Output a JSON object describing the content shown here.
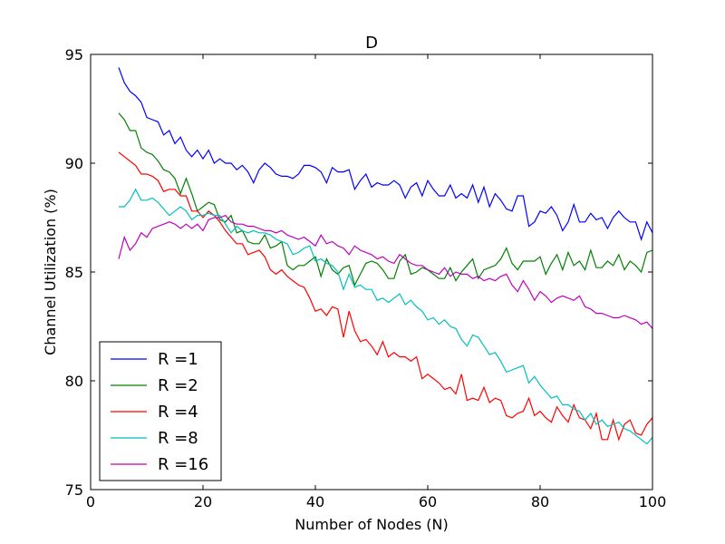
{
  "chart_data": {
    "type": "line",
    "title": "D",
    "xlabel": "Number of Nodes (N)",
    "ylabel": "Channel Utilization (%)",
    "xlim": [
      0,
      100
    ],
    "ylim": [
      75,
      95
    ],
    "xticks": [
      0,
      20,
      40,
      60,
      80,
      100
    ],
    "yticks": [
      75,
      80,
      85,
      90,
      95
    ],
    "grid": false,
    "legend_position": "lower-left",
    "x": [
      5,
      6,
      7,
      8,
      9,
      10,
      11,
      12,
      13,
      14,
      15,
      16,
      17,
      18,
      19,
      20,
      21,
      22,
      23,
      24,
      25,
      26,
      27,
      28,
      29,
      30,
      31,
      32,
      33,
      34,
      35,
      36,
      37,
      38,
      39,
      40,
      41,
      42,
      43,
      44,
      45,
      46,
      47,
      48,
      49,
      50,
      51,
      52,
      53,
      54,
      55,
      56,
      57,
      58,
      59,
      60,
      61,
      62,
      63,
      64,
      65,
      66,
      67,
      68,
      69,
      70,
      71,
      72,
      73,
      74,
      75,
      76,
      77,
      78,
      79,
      80,
      81,
      82,
      83,
      84,
      85,
      86,
      87,
      88,
      89,
      90,
      91,
      92,
      93,
      94,
      95,
      96,
      97,
      98,
      99,
      100
    ],
    "series": [
      {
        "name": "R =1",
        "color": "#0000ff",
        "values": [
          94.4,
          93.7,
          93.3,
          93.1,
          92.8,
          92.1,
          92.0,
          91.9,
          91.3,
          91.5,
          90.9,
          91.2,
          90.6,
          90.3,
          90.6,
          90.2,
          90.6,
          90.0,
          90.2,
          90.0,
          90.0,
          89.7,
          89.9,
          89.6,
          89.1,
          89.7,
          90.0,
          89.8,
          89.5,
          89.4,
          89.4,
          89.3,
          89.5,
          89.9,
          89.9,
          89.8,
          89.6,
          89.1,
          89.8,
          89.6,
          89.6,
          89.7,
          88.8,
          89.2,
          89.5,
          88.9,
          89.1,
          89.0,
          89.0,
          89.2,
          89.0,
          88.4,
          88.9,
          89.1,
          88.5,
          89.2,
          88.8,
          88.5,
          88.5,
          89.0,
          88.4,
          88.6,
          88.4,
          89.0,
          88.2,
          88.9,
          88.0,
          88.6,
          88.3,
          87.9,
          87.8,
          88.5,
          88.5,
          87.1,
          87.3,
          87.8,
          87.7,
          88.0,
          87.6,
          86.9,
          87.3,
          88.1,
          87.3,
          87.3,
          87.7,
          87.4,
          87.5,
          87.0,
          87.5,
          87.8,
          87.5,
          87.3,
          87.3,
          86.5,
          87.3,
          86.8
        ]
      },
      {
        "name": "R =2",
        "color": "#008000",
        "values": [
          92.3,
          92.0,
          91.5,
          91.5,
          90.7,
          90.5,
          90.4,
          90.1,
          89.7,
          89.6,
          89.3,
          88.6,
          89.3,
          88.6,
          87.8,
          88.0,
          88.2,
          88.1,
          87.4,
          87.3,
          87.6,
          86.8,
          86.9,
          86.4,
          86.3,
          86.3,
          86.7,
          86.1,
          86.2,
          86.4,
          85.3,
          85.1,
          85.3,
          85.3,
          85.5,
          85.7,
          84.8,
          85.6,
          85.1,
          84.9,
          85.2,
          85.3,
          84.4,
          84.9,
          85.4,
          85.5,
          85.4,
          85.1,
          84.7,
          84.7,
          85.5,
          85.8,
          84.9,
          85.0,
          85.2,
          85.1,
          84.9,
          84.7,
          84.7,
          85.2,
          84.6,
          85.0,
          85.3,
          85.6,
          84.7,
          85.1,
          85.2,
          85.3,
          85.6,
          86.1,
          85.4,
          85.1,
          85.5,
          85.5,
          85.5,
          85.7,
          84.9,
          85.4,
          85.8,
          85.1,
          85.9,
          85.3,
          85.5,
          85.1,
          86.0,
          85.2,
          85.2,
          85.5,
          85.3,
          85.8,
          85.1,
          85.5,
          85.3,
          85.0,
          85.9,
          86.0
        ]
      },
      {
        "name": "R =4",
        "color": "#ff0000",
        "values": [
          90.5,
          90.3,
          90.1,
          89.9,
          89.5,
          89.5,
          89.4,
          89.2,
          88.7,
          88.8,
          88.8,
          88.5,
          88.5,
          87.8,
          87.8,
          87.5,
          87.8,
          87.6,
          87.3,
          86.9,
          86.6,
          86.3,
          86.3,
          85.8,
          85.9,
          86.0,
          85.7,
          85.1,
          84.9,
          85.1,
          84.8,
          84.6,
          84.4,
          84.3,
          83.8,
          83.2,
          83.3,
          83.0,
          83.4,
          83.3,
          82.0,
          83.2,
          82.3,
          81.8,
          81.9,
          81.6,
          81.2,
          81.8,
          81.1,
          81.3,
          81.1,
          81.1,
          80.9,
          81.1,
          80.1,
          80.3,
          80.1,
          79.9,
          79.6,
          79.7,
          79.4,
          80.3,
          79.1,
          79.2,
          79.1,
          79.7,
          79.0,
          79.2,
          79.1,
          78.4,
          78.3,
          78.5,
          78.6,
          79.2,
          78.4,
          78.6,
          78.3,
          78.1,
          78.8,
          78.4,
          78.1,
          78.9,
          78.3,
          78.2,
          77.8,
          78.5,
          77.3,
          77.3,
          78.2,
          77.3,
          78.0,
          78.2,
          77.6,
          77.5,
          78.0,
          78.3
        ]
      },
      {
        "name": "R =8",
        "color": "#00bfbf",
        "values": [
          88.0,
          88.0,
          88.3,
          88.8,
          88.3,
          88.3,
          88.4,
          88.2,
          87.9,
          87.6,
          87.8,
          88.0,
          87.8,
          87.4,
          87.6,
          87.6,
          87.7,
          87.6,
          87.6,
          87.2,
          86.8,
          87.1,
          86.9,
          86.8,
          86.9,
          86.8,
          86.8,
          86.7,
          86.5,
          86.4,
          86.3,
          85.8,
          85.9,
          86.1,
          86.2,
          85.5,
          85.6,
          85.4,
          85.3,
          85.0,
          84.2,
          84.9,
          84.3,
          84.4,
          84.2,
          84.2,
          83.7,
          83.8,
          83.6,
          83.8,
          84.0,
          83.5,
          83.7,
          83.4,
          83.2,
          82.8,
          82.9,
          82.6,
          82.8,
          82.5,
          82.4,
          81.9,
          81.6,
          82.1,
          82.0,
          81.6,
          81.2,
          81.3,
          80.9,
          80.4,
          80.5,
          80.6,
          80.7,
          79.9,
          80.2,
          79.8,
          79.5,
          79.2,
          79.3,
          78.9,
          78.9,
          78.7,
          78.6,
          78.2,
          78.5,
          78.0,
          78.2,
          77.9,
          78.0,
          78.1,
          77.8,
          77.7,
          77.5,
          77.3,
          77.1,
          77.4
        ]
      },
      {
        "name": "R =16",
        "color": "#bf00bf",
        "values": [
          85.6,
          86.6,
          86.0,
          86.3,
          86.8,
          86.6,
          87.0,
          87.1,
          87.2,
          87.3,
          87.2,
          87.0,
          87.2,
          87.0,
          87.2,
          86.9,
          87.4,
          87.5,
          87.5,
          87.6,
          87.3,
          87.2,
          87.2,
          87.1,
          87.1,
          87.0,
          86.9,
          86.9,
          86.8,
          86.9,
          86.7,
          86.6,
          86.5,
          86.6,
          86.4,
          86.2,
          86.7,
          86.3,
          86.4,
          86.2,
          86.1,
          85.8,
          86.2,
          86.0,
          85.9,
          85.8,
          85.6,
          85.7,
          85.5,
          85.4,
          85.8,
          85.6,
          85.4,
          85.3,
          85.3,
          85.1,
          85.0,
          84.9,
          85.2,
          84.8,
          85.0,
          84.9,
          84.9,
          84.7,
          84.8,
          84.6,
          84.7,
          84.6,
          84.8,
          84.9,
          84.4,
          84.1,
          84.6,
          84.2,
          83.7,
          84.1,
          83.9,
          83.6,
          83.8,
          83.9,
          83.8,
          83.7,
          83.9,
          83.4,
          83.3,
          83.1,
          83.1,
          83.0,
          82.9,
          82.9,
          83.0,
          82.9,
          82.8,
          82.6,
          82.7,
          82.4
        ]
      }
    ]
  }
}
